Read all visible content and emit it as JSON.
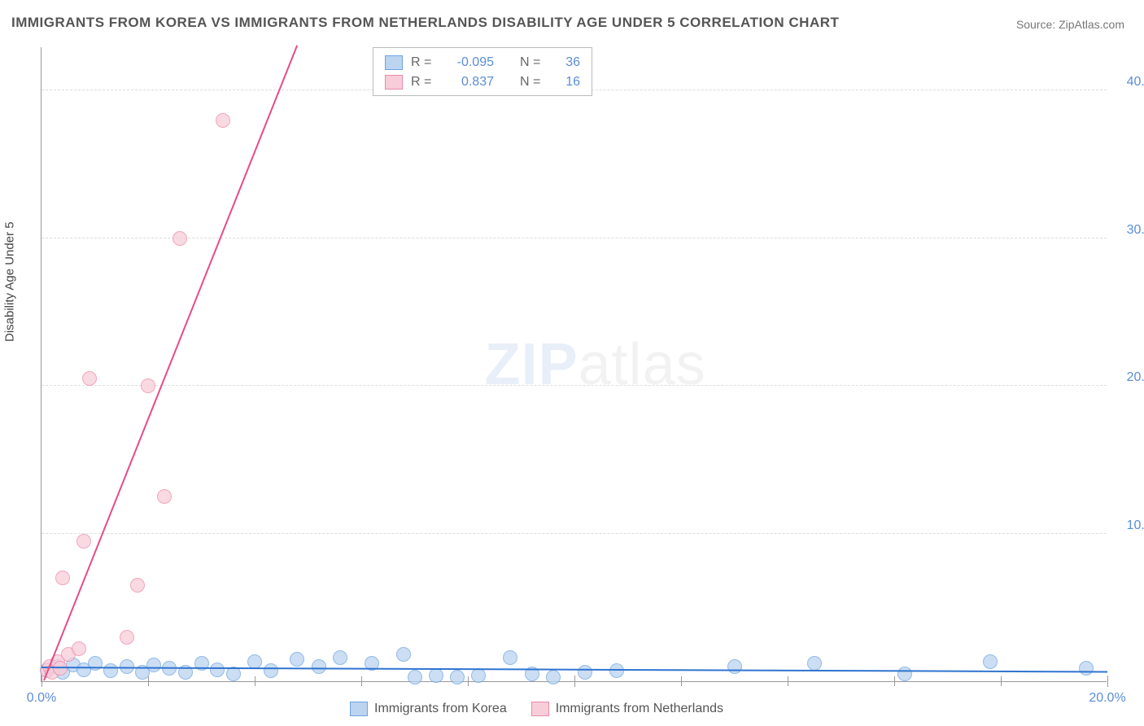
{
  "title": "IMMIGRANTS FROM KOREA VS IMMIGRANTS FROM NETHERLANDS DISABILITY AGE UNDER 5 CORRELATION CHART",
  "source_label": "Source:",
  "source_site": "ZipAtlas.com",
  "ylabel": "Disability Age Under 5",
  "watermark_bold": "ZIP",
  "watermark_rest": "atlas",
  "chart": {
    "type": "scatter",
    "xlim": [
      0,
      20
    ],
    "ylim": [
      0,
      43
    ],
    "xticks": [
      0,
      10,
      20
    ],
    "xtick_labels": [
      "0.0%",
      "",
      "20.0%"
    ],
    "inner_xticks": [
      2,
      4,
      6,
      8,
      10,
      12,
      14,
      16,
      18
    ],
    "yticks": [
      10,
      20,
      30,
      40
    ],
    "ytick_labels": [
      "10.0%",
      "20.0%",
      "30.0%",
      "40.0%"
    ],
    "grid_color": "#dddddd",
    "background_color": "#ffffff",
    "axis_color": "#999999",
    "tick_label_color": "#5b8dd6",
    "marker_radius": 9,
    "marker_stroke_width": 1.5,
    "trend_line_width": 2
  },
  "series": [
    {
      "name": "Immigrants from Korea",
      "fill_color": "#bcd4f0",
      "stroke_color": "#6ea3e0",
      "line_color": "#2f74d0",
      "r_label": "R =",
      "r_value": "-0.095",
      "n_label": "N =",
      "n_value": "36",
      "trend": {
        "x1": 0.0,
        "y1": 0.9,
        "x2": 20.0,
        "y2": 0.6
      },
      "points": [
        [
          0.1,
          0.8
        ],
        [
          0.3,
          1.0
        ],
        [
          0.4,
          0.6
        ],
        [
          0.6,
          1.1
        ],
        [
          0.8,
          0.8
        ],
        [
          1.0,
          1.2
        ],
        [
          1.3,
          0.7
        ],
        [
          1.6,
          1.0
        ],
        [
          1.9,
          0.6
        ],
        [
          2.1,
          1.1
        ],
        [
          2.4,
          0.9
        ],
        [
          2.7,
          0.6
        ],
        [
          3.0,
          1.2
        ],
        [
          3.3,
          0.8
        ],
        [
          3.6,
          0.5
        ],
        [
          4.0,
          1.3
        ],
        [
          4.3,
          0.7
        ],
        [
          4.8,
          1.5
        ],
        [
          5.2,
          1.0
        ],
        [
          5.6,
          1.6
        ],
        [
          6.2,
          1.2
        ],
        [
          6.8,
          1.8
        ],
        [
          7.0,
          0.3
        ],
        [
          7.4,
          0.4
        ],
        [
          7.8,
          0.3
        ],
        [
          8.2,
          0.4
        ],
        [
          8.8,
          1.6
        ],
        [
          9.2,
          0.5
        ],
        [
          9.6,
          0.3
        ],
        [
          10.2,
          0.6
        ],
        [
          10.8,
          0.7
        ],
        [
          13.0,
          1.0
        ],
        [
          14.5,
          1.2
        ],
        [
          16.2,
          0.5
        ],
        [
          17.8,
          1.3
        ],
        [
          19.6,
          0.9
        ]
      ]
    },
    {
      "name": "Immigrants from Netherlands",
      "fill_color": "#f7cdd9",
      "stroke_color": "#ec8aa8",
      "line_color": "#e74b87",
      "r_label": "R =",
      "r_value": "0.837",
      "n_label": "N =",
      "n_value": "16",
      "trend": {
        "x1": 0.05,
        "y1": 0.0,
        "x2": 4.8,
        "y2": 43.0
      },
      "points": [
        [
          0.1,
          0.7
        ],
        [
          0.15,
          1.0
        ],
        [
          0.2,
          0.6
        ],
        [
          0.3,
          1.3
        ],
        [
          0.35,
          0.9
        ],
        [
          0.5,
          1.8
        ],
        [
          0.7,
          2.2
        ],
        [
          0.4,
          7.0
        ],
        [
          0.8,
          9.5
        ],
        [
          1.6,
          3.0
        ],
        [
          1.8,
          6.5
        ],
        [
          0.9,
          20.5
        ],
        [
          2.0,
          20.0
        ],
        [
          2.3,
          12.5
        ],
        [
          2.6,
          30.0
        ],
        [
          3.4,
          38.0
        ]
      ]
    }
  ],
  "legend_bottom": [
    {
      "label": "Immigrants from Korea",
      "fill": "#bcd4f0",
      "stroke": "#6ea3e0"
    },
    {
      "label": "Immigrants from Netherlands",
      "fill": "#f7cdd9",
      "stroke": "#ec8aa8"
    }
  ]
}
